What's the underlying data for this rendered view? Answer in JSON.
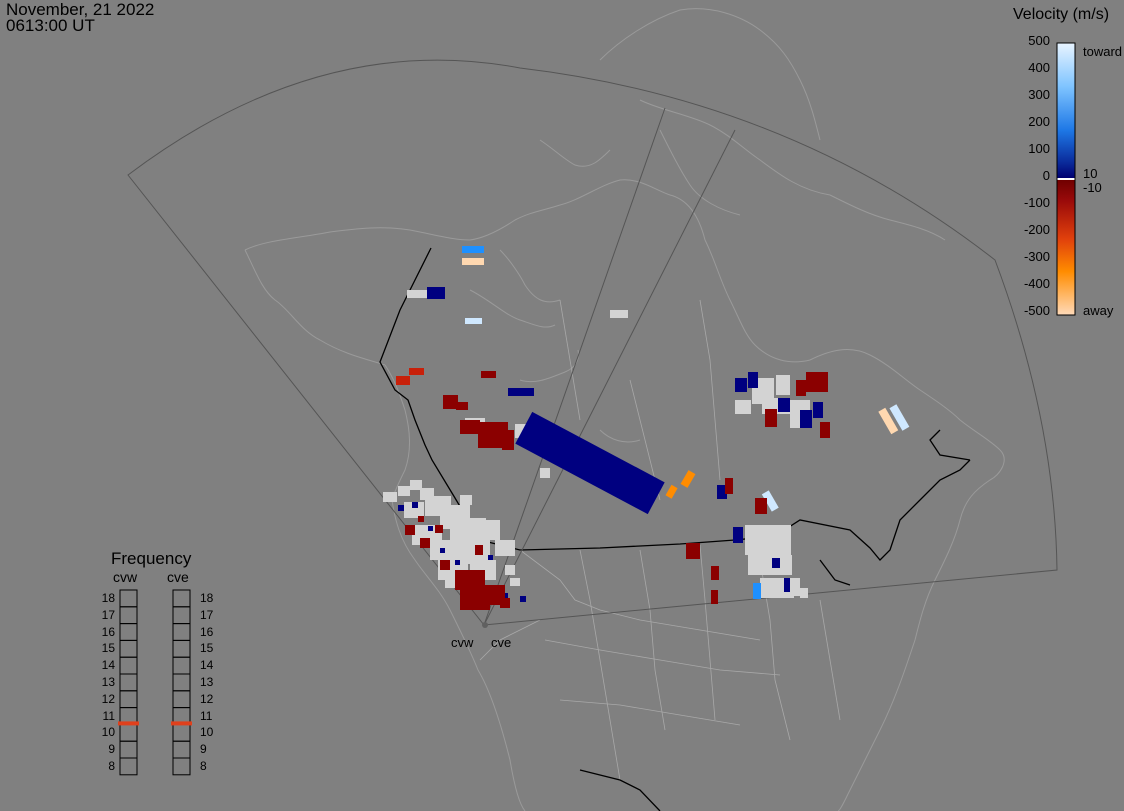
{
  "header": {
    "date": "November, 21 2022",
    "time": "0613:00 UT"
  },
  "velocity_scale": {
    "title": "Velocity (m/s)",
    "tick_labels": [
      "500",
      "400",
      "300",
      "200",
      "100",
      "0",
      "-100",
      "-200",
      "-300",
      "-400",
      "-500"
    ],
    "toward_label": "toward",
    "away_label": "away",
    "pos_threshold": "10",
    "neg_threshold": "-10",
    "colors": {
      "toward_high": "#e8f4ff",
      "toward_mid": "#1e90ff",
      "toward_low": "#000080",
      "away_low": "#8b0000",
      "away_mid": "#ff8c00",
      "away_high": "#ffdab9",
      "ground_scatter": "#d3d3d3"
    }
  },
  "frequency_panel": {
    "title": "Frequency",
    "columns": [
      {
        "label": "cvw",
        "value": 11
      },
      {
        "label": "cve",
        "value": 11
      }
    ],
    "ticks": [
      "18",
      "17",
      "16",
      "15",
      "14",
      "13",
      "12",
      "11",
      "10",
      "9",
      "8"
    ],
    "marker_color": "#e0401c"
  },
  "radars": [
    {
      "label": "cvw"
    },
    {
      "label": "cve"
    }
  ]
}
